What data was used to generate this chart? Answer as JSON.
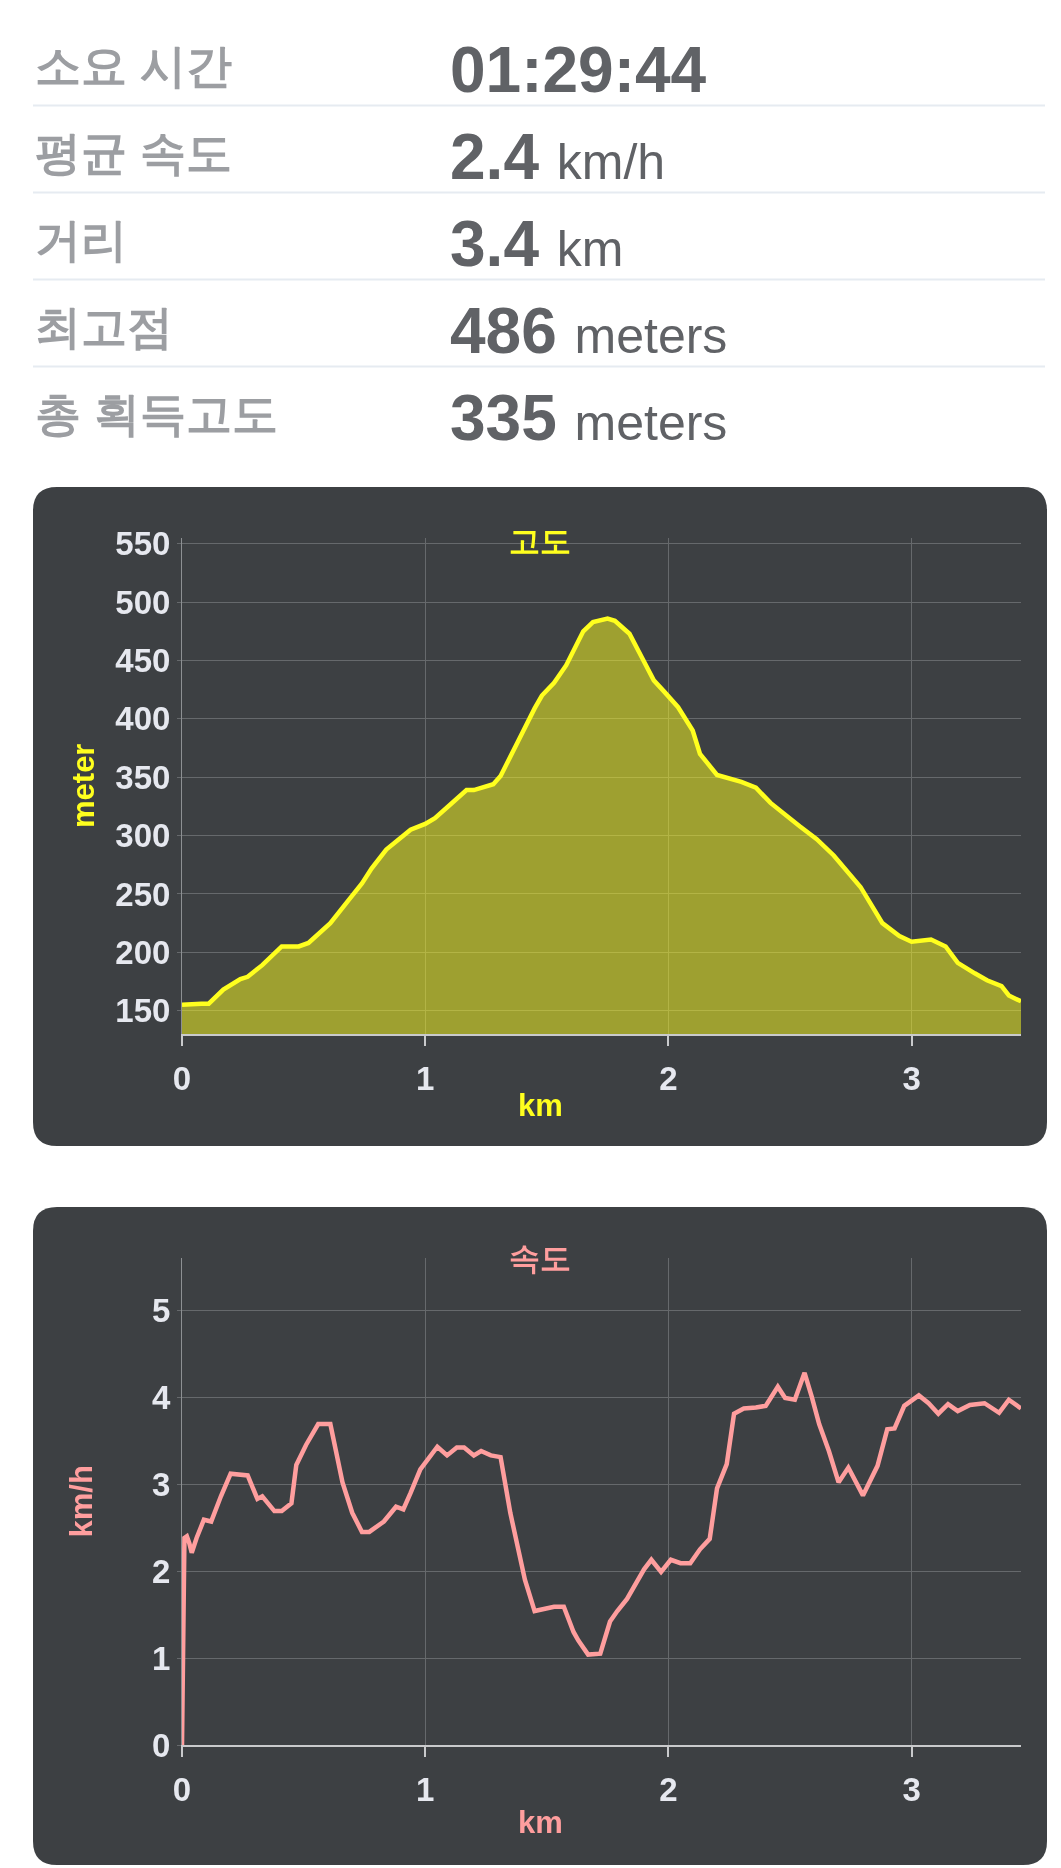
{
  "chart_data": [
    {
      "type": "other",
      "categories": [
        "소요 시간",
        "평균 속도",
        "거리",
        "최고점",
        "총 획득고도"
      ],
      "value_labels": [
        "01:29:44",
        "2.4 km/h",
        "3.4 km",
        "486 meters",
        "335 meters"
      ]
    },
    {
      "type": "area",
      "title": "고도",
      "xlabel": "km",
      "ylabel": "meter",
      "x": [
        0,
        0.08,
        0.11,
        0.17,
        0.24,
        0.27,
        0.33,
        0.41,
        0.48,
        0.52,
        0.61,
        0.69,
        0.74,
        0.78,
        0.84,
        0.94,
        1.0,
        1.04,
        1.1,
        1.17,
        1.2,
        1.28,
        1.31,
        1.38,
        1.45,
        1.48,
        1.53,
        1.58,
        1.65,
        1.69,
        1.75,
        1.78,
        1.84,
        1.89,
        1.94,
        1.98,
        2.04,
        2.1,
        2.13,
        2.2,
        2.3,
        2.36,
        2.42,
        2.54,
        2.61,
        2.68,
        2.79,
        2.88,
        2.95,
        3.0,
        3.08,
        3.14,
        3.19,
        3.26,
        3.31,
        3.37,
        3.4,
        3.45
      ],
      "series": [
        {
          "color": "#ffff1e",
          "values": [
            155,
            156,
            156,
            168,
            177,
            179,
            189,
            205,
            205,
            208,
            225,
            246,
            259,
            272,
            288,
            305,
            310,
            315,
            326,
            339,
            339,
            344,
            351,
            380,
            409,
            420,
            431,
            446,
            475,
            483,
            486,
            484,
            473,
            453,
            433,
            424,
            410,
            390,
            370,
            352,
            346,
            341,
            328,
            308,
            297,
            283,
            256,
            225,
            214,
            209,
            211,
            205,
            191,
            182,
            176,
            171,
            163,
            158
          ]
        }
      ],
      "xlim": [
        0,
        3.45
      ],
      "ylim": [
        130,
        555
      ],
      "xticks": [
        0,
        1,
        2,
        3
      ],
      "yticks": [
        150,
        200,
        250,
        300,
        350,
        400,
        450,
        500,
        550
      ],
      "grid": true
    },
    {
      "type": "line",
      "title": "속도",
      "xlabel": "km",
      "ylabel": "km/h",
      "x": [
        0,
        0.01,
        0.02,
        0.03,
        0.04,
        0.06,
        0.09,
        0.12,
        0.16,
        0.2,
        0.27,
        0.31,
        0.33,
        0.38,
        0.41,
        0.45,
        0.47,
        0.51,
        0.56,
        0.61,
        0.66,
        0.7,
        0.74,
        0.77,
        0.83,
        0.88,
        0.91,
        0.94,
        0.98,
        1.05,
        1.09,
        1.13,
        1.16,
        1.2,
        1.23,
        1.27,
        1.31,
        1.35,
        1.41,
        1.45,
        1.53,
        1.57,
        1.61,
        1.63,
        1.67,
        1.72,
        1.76,
        1.79,
        1.83,
        1.9,
        1.93,
        1.97,
        2.01,
        2.05,
        2.09,
        2.13,
        2.17,
        2.2,
        2.24,
        2.27,
        2.31,
        2.36,
        2.4,
        2.45,
        2.48,
        2.52,
        2.56,
        2.59,
        2.62,
        2.66,
        2.7,
        2.74,
        2.8,
        2.86,
        2.9,
        2.93,
        2.97,
        3.03,
        3.07,
        3.11,
        3.15,
        3.19,
        3.24,
        3.3,
        3.36,
        3.4,
        3.45
      ],
      "series": [
        {
          "color": "#ff9e9e",
          "values": [
            0,
            2.38,
            2.4,
            2.32,
            2.21,
            2.38,
            2.59,
            2.57,
            2.86,
            3.12,
            3.1,
            2.83,
            2.86,
            2.69,
            2.69,
            2.78,
            3.22,
            3.45,
            3.69,
            3.69,
            3.02,
            2.67,
            2.45,
            2.45,
            2.57,
            2.74,
            2.71,
            2.9,
            3.17,
            3.43,
            3.33,
            3.42,
            3.42,
            3.33,
            3.38,
            3.33,
            3.31,
            2.67,
            1.9,
            1.54,
            1.59,
            1.59,
            1.3,
            1.2,
            1.04,
            1.05,
            1.42,
            1.54,
            1.68,
            2.02,
            2.13,
            1.99,
            2.13,
            2.09,
            2.09,
            2.25,
            2.37,
            2.95,
            3.23,
            3.81,
            3.87,
            3.88,
            3.9,
            4.12,
            3.99,
            3.97,
            4.28,
            4.0,
            3.69,
            3.38,
            3.02,
            3.19,
            2.87,
            3.21,
            3.63,
            3.64,
            3.9,
            4.02,
            3.93,
            3.81,
            3.92,
            3.84,
            3.91,
            3.93,
            3.82,
            3.97,
            3.87
          ]
        }
      ],
      "xlim": [
        0,
        3.45
      ],
      "ylim": [
        0,
        5.6
      ],
      "xticks": [
        0,
        1,
        2,
        3
      ],
      "yticks": [
        0,
        1,
        2,
        3,
        4,
        5
      ],
      "grid": true
    }
  ]
}
